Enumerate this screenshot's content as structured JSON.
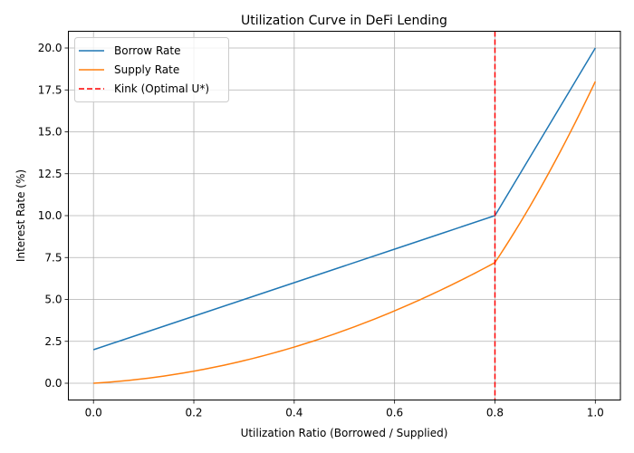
{
  "chart_data": {
    "type": "line",
    "title": "Utilization Curve in DeFi Lending",
    "xlabel": "Utilization Ratio (Borrowed / Supplied)",
    "ylabel": "Interest Rate (%)",
    "xlim": [
      -0.05,
      1.05
    ],
    "ylim": [
      -1.0,
      21.0
    ],
    "xticks": [
      0.0,
      0.2,
      0.4,
      0.6,
      0.8,
      1.0
    ],
    "xtick_labels": [
      "0.0",
      "0.2",
      "0.4",
      "0.6",
      "0.8",
      "1.0"
    ],
    "yticks": [
      0.0,
      2.5,
      5.0,
      7.5,
      10.0,
      12.5,
      15.0,
      17.5,
      20.0
    ],
    "ytick_labels": [
      "0.0",
      "2.5",
      "5.0",
      "7.5",
      "10.0",
      "12.5",
      "15.0",
      "17.5",
      "20.0"
    ],
    "grid": true,
    "legend_position": "upper left",
    "x": [
      0.0,
      0.1,
      0.2,
      0.3,
      0.4,
      0.5,
      0.6,
      0.7,
      0.8,
      0.85,
      0.9,
      0.95,
      1.0
    ],
    "series": [
      {
        "name": "Borrow Rate",
        "color": "#1f77b4",
        "style": "solid",
        "values": [
          2.0,
          3.0,
          4.0,
          5.0,
          6.0,
          7.0,
          8.0,
          9.0,
          10.0,
          12.5,
          15.0,
          17.5,
          20.0
        ]
      },
      {
        "name": "Supply Rate",
        "color": "#ff7f0e",
        "style": "solid",
        "values": [
          0.0,
          0.27,
          0.72,
          1.35,
          2.16,
          3.15,
          4.32,
          5.67,
          7.2,
          9.56,
          12.15,
          14.96,
          18.0
        ]
      },
      {
        "name": "Kink (Optimal U*)",
        "color": "#d62728",
        "style": "dashed",
        "vertical_line_x": 0.8
      }
    ]
  }
}
